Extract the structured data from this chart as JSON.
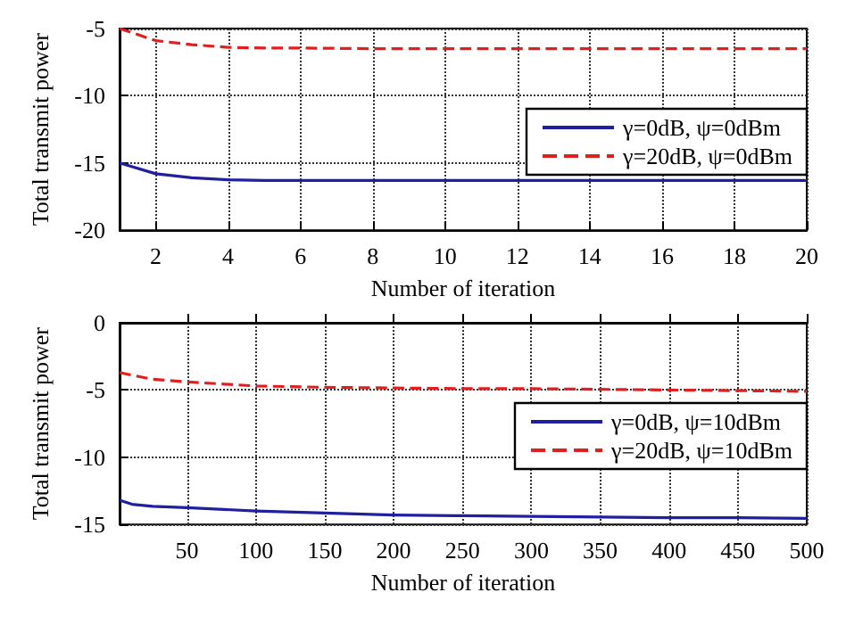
{
  "chart_data": [
    {
      "type": "line",
      "xlabel": "Number of iteration",
      "ylabel": "Total transmit power",
      "xlim": [
        1,
        20
      ],
      "xticks": [
        2,
        4,
        6,
        8,
        10,
        12,
        14,
        16,
        18,
        20
      ],
      "ylim": [
        -20,
        -5
      ],
      "yticks": [
        -20,
        -15,
        -10,
        -5
      ],
      "grid": true,
      "legend": "right",
      "marker": "none",
      "series": [
        {
          "name": "γ=0dB, ψ=0dBm",
          "color": "#1f1fa0",
          "line_style": "solid",
          "x": [
            1,
            2,
            3,
            4,
            5,
            6,
            8,
            10,
            12,
            14,
            16,
            18,
            20
          ],
          "values": [
            -15,
            -15.8,
            -16.1,
            -16.25,
            -16.3,
            -16.3,
            -16.3,
            -16.3,
            -16.3,
            -16.3,
            -16.3,
            -16.3,
            -16.3
          ]
        },
        {
          "name": "γ=20dB, ψ=0dBm",
          "color": "#e02020",
          "line_style": "dashed",
          "x": [
            1,
            2,
            3,
            4,
            5,
            6,
            8,
            10,
            12,
            14,
            16,
            18,
            20
          ],
          "values": [
            -5,
            -5.9,
            -6.2,
            -6.4,
            -6.45,
            -6.45,
            -6.5,
            -6.5,
            -6.5,
            -6.5,
            -6.5,
            -6.5,
            -6.5
          ]
        }
      ]
    },
    {
      "type": "line",
      "xlabel": "Number of iteration",
      "ylabel": "Total transmit power",
      "xlim": [
        1,
        500
      ],
      "xticks": [
        50,
        100,
        150,
        200,
        250,
        300,
        350,
        400,
        450,
        500
      ],
      "ylim": [
        -15,
        0
      ],
      "yticks": [
        -15,
        -10,
        -5,
        0
      ],
      "grid": true,
      "legend": "right",
      "marker": "none",
      "series": [
        {
          "name": "γ=0dB, ψ=10dBm",
          "color": "#1f1fa0",
          "line_style": "solid",
          "x": [
            1,
            10,
            25,
            50,
            100,
            150,
            200,
            250,
            300,
            350,
            400,
            450,
            500
          ],
          "values": [
            -13.2,
            -13.5,
            -13.65,
            -13.75,
            -14.0,
            -14.15,
            -14.3,
            -14.35,
            -14.4,
            -14.45,
            -14.5,
            -14.5,
            -14.55
          ]
        },
        {
          "name": "γ=20dB, ψ=10dBm",
          "color": "#e02020",
          "line_style": "dashed",
          "x": [
            1,
            10,
            25,
            50,
            100,
            150,
            200,
            250,
            300,
            350,
            400,
            450,
            500
          ],
          "values": [
            -3.7,
            -3.9,
            -4.2,
            -4.4,
            -4.7,
            -4.8,
            -4.85,
            -4.9,
            -4.9,
            -4.95,
            -5.0,
            -5.05,
            -5.1
          ]
        }
      ]
    }
  ]
}
